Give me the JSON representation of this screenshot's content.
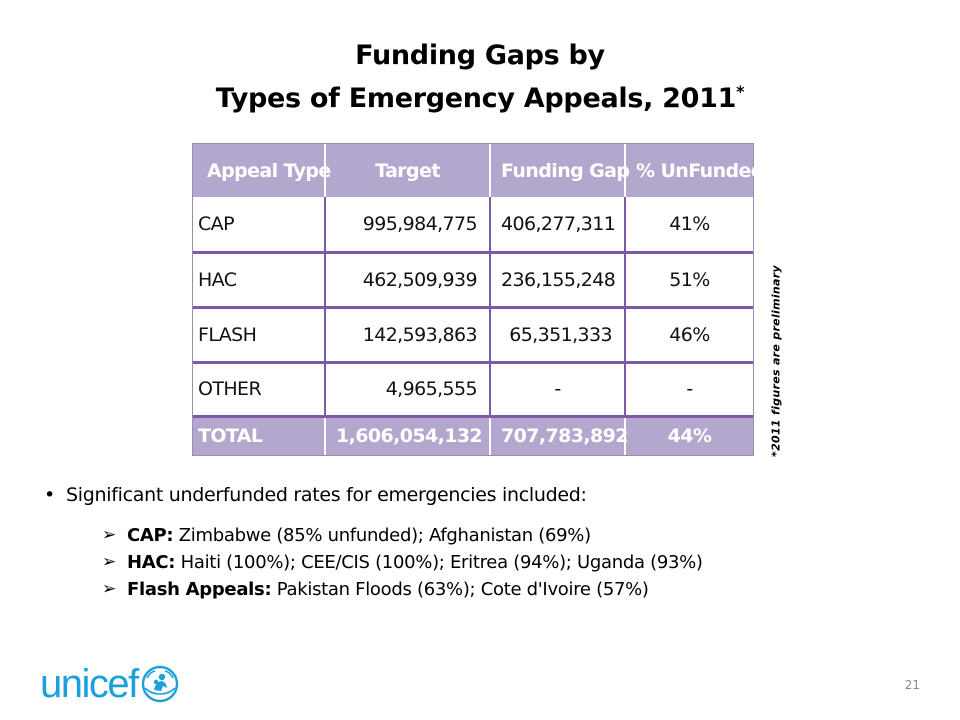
{
  "title": {
    "line1": "Funding Gaps by",
    "line2": "Types of Emergency Appeals, 2011",
    "marker": "*"
  },
  "table": {
    "headers": [
      "Appeal Type",
      "Target",
      "Funding Gap",
      "% UnFunded"
    ],
    "rows": [
      [
        "CAP",
        "995,984,775",
        "406,277,311",
        "41%"
      ],
      [
        "HAC",
        "462,509,939",
        "236,155,248",
        "51%"
      ],
      [
        "FLASH",
        "142,593,863",
        "65,351,333",
        "46%"
      ],
      [
        "OTHER",
        "4,965,555",
        "-",
        "-"
      ]
    ],
    "total": [
      "TOTAL",
      "1,606,054,132",
      "707,783,892",
      "44%"
    ]
  },
  "footnote": "*2011 figures are preliminary",
  "bullets": {
    "main": "Significant underfunded rates for emergencies included:",
    "items": [
      {
        "label": "CAP:",
        "text": "Zimbabwe (85% unfunded); Afghanistan (69%)"
      },
      {
        "label": "HAC:",
        "text": "Haiti (100%); CEE/CIS (100%); Eritrea (94%); Uganda (93%)"
      },
      {
        "label": "Flash Appeals:",
        "text": "Pakistan Floods (63%); Cote d'Ivoire (57%)"
      }
    ]
  },
  "logo": {
    "text": "unicef",
    "icon": "unicef-emblem-icon",
    "color": "#1ca0dc"
  },
  "page_number": "21",
  "colors": {
    "header_bg": "#b4a7ce",
    "row_divider": "#7e5aa6"
  }
}
